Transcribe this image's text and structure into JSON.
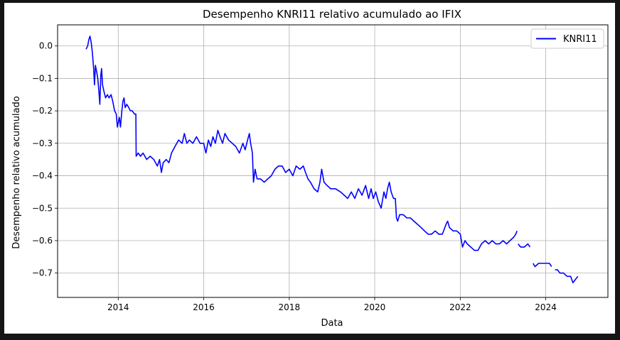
{
  "chart_data": {
    "type": "line",
    "title": "Desempenho KNRI11 relativo acumulado ao IFIX",
    "xlabel": "Data",
    "ylabel": "Desempenho relativo acumulado",
    "xlim": [
      "2012-08-01",
      "2025-06-15"
    ],
    "ylim": [
      -0.775,
      0.065
    ],
    "x_ticks": [
      "2014",
      "2016",
      "2018",
      "2020",
      "2022",
      "2024"
    ],
    "y_ticks": [
      "0.0",
      "−0.1",
      "−0.2",
      "−0.3",
      "−0.4",
      "−0.5",
      "−0.6",
      "−0.7"
    ],
    "grid": true,
    "legend_position": "top-right",
    "series": [
      {
        "name": "KNRI11",
        "color": "#0000ff",
        "segments": [
          [
            [
              "2013-04-01",
              -0.01
            ],
            [
              "2013-04-15",
              0.0
            ],
            [
              "2013-04-25",
              0.02
            ],
            [
              "2013-05-05",
              0.03
            ],
            [
              "2013-05-15",
              0.01
            ],
            [
              "2013-05-25",
              -0.02
            ],
            [
              "2013-06-05",
              -0.07
            ],
            [
              "2013-06-12",
              -0.12
            ],
            [
              "2013-06-20",
              -0.06
            ],
            [
              "2013-07-01",
              -0.08
            ],
            [
              "2013-07-10",
              -0.1
            ],
            [
              "2013-07-20",
              -0.14
            ],
            [
              "2013-07-28",
              -0.18
            ],
            [
              "2013-08-05",
              -0.09
            ],
            [
              "2013-08-12",
              -0.07
            ],
            [
              "2013-08-20",
              -0.12
            ],
            [
              "2013-09-01",
              -0.14
            ],
            [
              "2013-09-15",
              -0.16
            ],
            [
              "2013-10-01",
              -0.15
            ],
            [
              "2013-10-15",
              -0.16
            ],
            [
              "2013-11-01",
              -0.15
            ],
            [
              "2013-11-15",
              -0.17
            ],
            [
              "2013-12-01",
              -0.2
            ],
            [
              "2013-12-15",
              -0.21
            ],
            [
              "2013-12-25",
              -0.25
            ],
            [
              "2014-01-10",
              -0.22
            ],
            [
              "2014-01-20",
              -0.25
            ],
            [
              "2014-02-01",
              -0.2
            ],
            [
              "2014-02-10",
              -0.17
            ],
            [
              "2014-02-20",
              -0.16
            ],
            [
              "2014-03-01",
              -0.19
            ],
            [
              "2014-03-15",
              -0.18
            ],
            [
              "2014-04-01",
              -0.19
            ],
            [
              "2014-04-15",
              -0.2
            ],
            [
              "2014-05-01",
              -0.2
            ],
            [
              "2014-05-20",
              -0.21
            ],
            [
              "2014-06-01",
              -0.21
            ],
            [
              "2014-06-03",
              -0.34
            ],
            [
              "2014-06-20",
              -0.33
            ],
            [
              "2014-07-10",
              -0.34
            ],
            [
              "2014-08-01",
              -0.33
            ],
            [
              "2014-09-01",
              -0.35
            ],
            [
              "2014-10-01",
              -0.34
            ],
            [
              "2014-11-01",
              -0.35
            ],
            [
              "2014-12-01",
              -0.37
            ],
            [
              "2014-12-20",
              -0.35
            ],
            [
              "2015-01-05",
              -0.39
            ],
            [
              "2015-01-20",
              -0.36
            ],
            [
              "2015-02-15",
              -0.35
            ],
            [
              "2015-03-10",
              -0.36
            ],
            [
              "2015-04-01",
              -0.33
            ],
            [
              "2015-05-01",
              -0.31
            ],
            [
              "2015-06-01",
              -0.29
            ],
            [
              "2015-07-01",
              -0.3
            ],
            [
              "2015-07-20",
              -0.27
            ],
            [
              "2015-08-10",
              -0.3
            ],
            [
              "2015-09-01",
              -0.29
            ],
            [
              "2015-10-01",
              -0.3
            ],
            [
              "2015-11-01",
              -0.28
            ],
            [
              "2015-12-01",
              -0.3
            ],
            [
              "2016-01-01",
              -0.3
            ],
            [
              "2016-01-20",
              -0.33
            ],
            [
              "2016-02-10",
              -0.29
            ],
            [
              "2016-03-01",
              -0.31
            ],
            [
              "2016-03-20",
              -0.28
            ],
            [
              "2016-04-10",
              -0.3
            ],
            [
              "2016-05-01",
              -0.26
            ],
            [
              "2016-05-20",
              -0.28
            ],
            [
              "2016-06-10",
              -0.3
            ],
            [
              "2016-07-01",
              -0.27
            ],
            [
              "2016-08-01",
              -0.29
            ],
            [
              "2016-09-01",
              -0.3
            ],
            [
              "2016-10-01",
              -0.31
            ],
            [
              "2016-11-01",
              -0.33
            ],
            [
              "2016-12-01",
              -0.3
            ],
            [
              "2016-12-20",
              -0.32
            ],
            [
              "2017-01-10",
              -0.29
            ],
            [
              "2017-01-25",
              -0.27
            ],
            [
              "2017-02-05",
              -0.3
            ],
            [
              "2017-02-20",
              -0.33
            ],
            [
              "2017-03-01",
              -0.42
            ],
            [
              "2017-03-15",
              -0.38
            ],
            [
              "2017-04-01",
              -0.41
            ],
            [
              "2017-05-01",
              -0.41
            ],
            [
              "2017-06-01",
              -0.42
            ],
            [
              "2017-07-01",
              -0.41
            ],
            [
              "2017-08-01",
              -0.4
            ],
            [
              "2017-09-01",
              -0.38
            ],
            [
              "2017-10-01",
              -0.37
            ],
            [
              "2017-11-01",
              -0.37
            ],
            [
              "2017-12-01",
              -0.39
            ],
            [
              "2018-01-01",
              -0.38
            ],
            [
              "2018-02-01",
              -0.4
            ],
            [
              "2018-03-01",
              -0.37
            ],
            [
              "2018-04-01",
              -0.38
            ],
            [
              "2018-05-01",
              -0.37
            ],
            [
              "2018-05-20",
              -0.39
            ],
            [
              "2018-06-10",
              -0.41
            ],
            [
              "2018-07-01",
              -0.42
            ],
            [
              "2018-08-01",
              -0.44
            ],
            [
              "2018-09-01",
              -0.45
            ],
            [
              "2018-09-20",
              -0.42
            ],
            [
              "2018-10-05",
              -0.38
            ],
            [
              "2018-10-25",
              -0.42
            ],
            [
              "2018-11-20",
              -0.43
            ],
            [
              "2018-12-20",
              -0.44
            ],
            [
              "2019-02-01",
              -0.44
            ],
            [
              "2019-03-15",
              -0.45
            ],
            [
              "2019-04-15",
              -0.46
            ],
            [
              "2019-05-15",
              -0.47
            ],
            [
              "2019-06-15",
              -0.45
            ],
            [
              "2019-07-15",
              -0.47
            ],
            [
              "2019-08-15",
              -0.44
            ],
            [
              "2019-09-15",
              -0.46
            ],
            [
              "2019-10-15",
              -0.43
            ],
            [
              "2019-11-10",
              -0.47
            ],
            [
              "2019-12-01",
              -0.44
            ],
            [
              "2019-12-20",
              -0.47
            ],
            [
              "2020-01-10",
              -0.45
            ],
            [
              "2020-02-01",
              -0.48
            ],
            [
              "2020-02-25",
              -0.5
            ],
            [
              "2020-03-10",
              -0.47
            ],
            [
              "2020-03-20",
              -0.45
            ],
            [
              "2020-04-05",
              -0.47
            ],
            [
              "2020-04-20",
              -0.44
            ],
            [
              "2020-05-05",
              -0.42
            ],
            [
              "2020-05-20",
              -0.45
            ],
            [
              "2020-06-10",
              -0.47
            ],
            [
              "2020-06-25",
              -0.47
            ],
            [
              "2020-07-05",
              -0.53
            ],
            [
              "2020-07-15",
              -0.54
            ],
            [
              "2020-08-01",
              -0.52
            ],
            [
              "2020-09-01",
              -0.52
            ],
            [
              "2020-10-01",
              -0.53
            ],
            [
              "2020-11-01",
              -0.53
            ],
            [
              "2020-12-01",
              -0.54
            ],
            [
              "2021-01-01",
              -0.55
            ],
            [
              "2021-02-01",
              -0.56
            ],
            [
              "2021-03-01",
              -0.57
            ],
            [
              "2021-04-01",
              -0.58
            ],
            [
              "2021-05-01",
              -0.58
            ],
            [
              "2021-06-01",
              -0.57
            ],
            [
              "2021-07-01",
              -0.58
            ],
            [
              "2021-08-01",
              -0.58
            ],
            [
              "2021-09-01",
              -0.55
            ],
            [
              "2021-09-15",
              -0.54
            ],
            [
              "2021-10-01",
              -0.56
            ],
            [
              "2021-11-01",
              -0.57
            ],
            [
              "2021-12-01",
              -0.57
            ],
            [
              "2022-01-01",
              -0.58
            ],
            [
              "2022-01-20",
              -0.62
            ],
            [
              "2022-02-10",
              -0.6
            ],
            [
              "2022-03-01",
              -0.61
            ],
            [
              "2022-04-01",
              -0.62
            ],
            [
              "2022-05-01",
              -0.63
            ],
            [
              "2022-06-01",
              -0.63
            ],
            [
              "2022-07-01",
              -0.61
            ],
            [
              "2022-08-01",
              -0.6
            ],
            [
              "2022-09-01",
              -0.61
            ],
            [
              "2022-10-01",
              -0.6
            ],
            [
              "2022-11-01",
              -0.61
            ],
            [
              "2022-12-01",
              -0.61
            ],
            [
              "2023-01-01",
              -0.6
            ],
            [
              "2023-02-01",
              -0.61
            ],
            [
              "2023-03-01",
              -0.6
            ],
            [
              "2023-04-01",
              -0.59
            ],
            [
              "2023-04-20",
              -0.58
            ],
            [
              "2023-05-01",
              -0.57
            ]
          ],
          [
            [
              "2023-05-10",
              -0.61
            ],
            [
              "2023-06-01",
              -0.62
            ],
            [
              "2023-07-01",
              -0.62
            ],
            [
              "2023-08-01",
              -0.61
            ],
            [
              "2023-08-20",
              -0.62
            ]
          ],
          [
            [
              "2023-09-15",
              -0.67
            ],
            [
              "2023-10-01",
              -0.68
            ],
            [
              "2023-11-01",
              -0.67
            ],
            [
              "2023-12-01",
              -0.67
            ],
            [
              "2024-01-01",
              -0.67
            ],
            [
              "2024-02-01",
              -0.67
            ],
            [
              "2024-02-20",
              -0.68
            ]
          ],
          [
            [
              "2024-03-20",
              -0.69
            ],
            [
              "2024-04-10",
              -0.69
            ],
            [
              "2024-05-01",
              -0.7
            ],
            [
              "2024-06-01",
              -0.7
            ],
            [
              "2024-07-01",
              -0.71
            ],
            [
              "2024-08-01",
              -0.71
            ],
            [
              "2024-08-20",
              -0.73
            ],
            [
              "2024-09-10",
              -0.72
            ],
            [
              "2024-10-01",
              -0.71
            ]
          ]
        ]
      }
    ]
  }
}
